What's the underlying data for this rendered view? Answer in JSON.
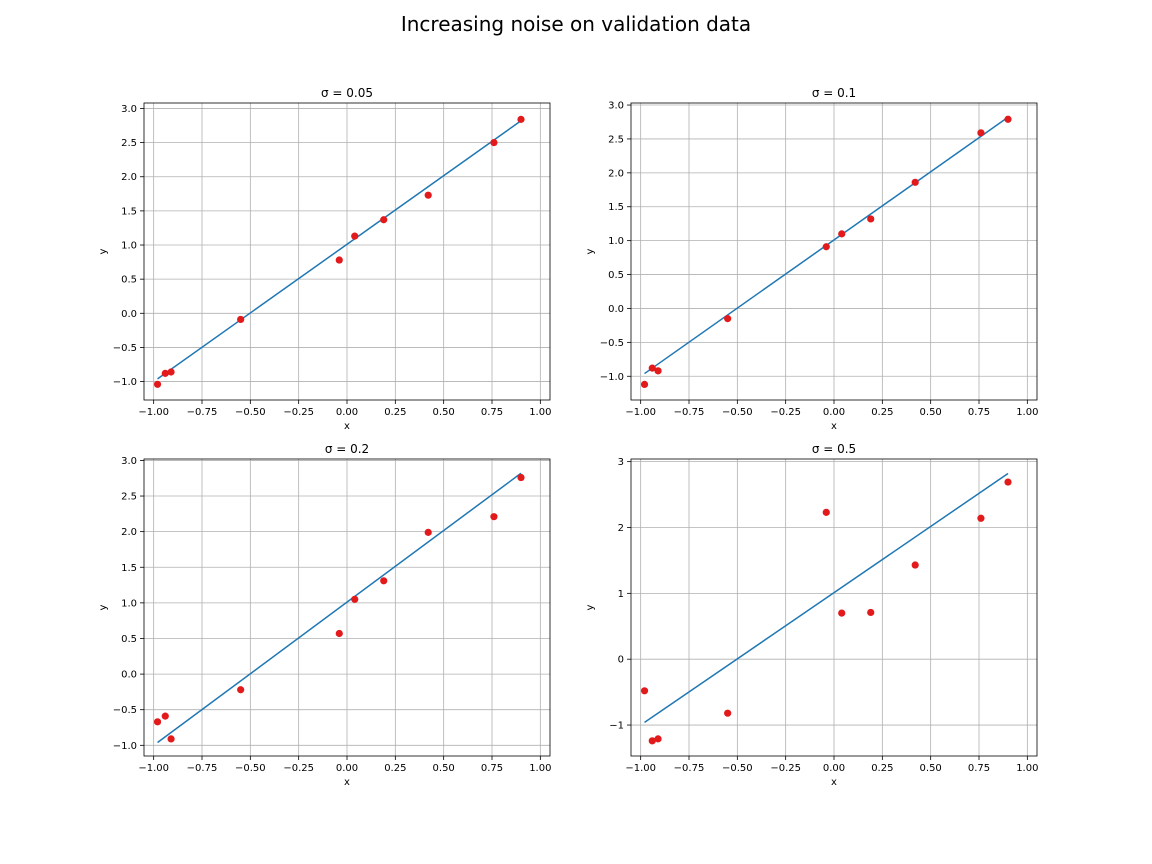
{
  "figure": {
    "suptitle": "Increasing noise on validation data"
  },
  "colors": {
    "line": "#1f77b4",
    "points": "#e31a1c",
    "grid": "#b0b0b0"
  },
  "chart_data": [
    {
      "type": "scatter",
      "title": "σ = 0.05",
      "xlabel": "x",
      "ylabel": "y",
      "xlim": [
        -1.05,
        1.05
      ],
      "ylim": [
        -1.27,
        3.08
      ],
      "xticks": [
        -1.0,
        -0.75,
        -0.5,
        -0.25,
        0.0,
        0.25,
        0.5,
        0.75,
        1.0
      ],
      "xtick_labels": [
        "−1.00",
        "−0.75",
        "−0.50",
        "−0.25",
        "0.00",
        "0.25",
        "0.50",
        "0.75",
        "1.00"
      ],
      "yticks": [
        -1.0,
        -0.5,
        0.0,
        0.5,
        1.0,
        1.5,
        2.0,
        2.5,
        3.0
      ],
      "ytick_labels": [
        "−1.0",
        "−0.5",
        "0.0",
        "0.5",
        "1.0",
        "1.5",
        "2.0",
        "2.5",
        "3.0"
      ],
      "grid": true,
      "line": {
        "x": [
          -0.98,
          0.9
        ],
        "y": [
          -0.96,
          2.82
        ]
      },
      "points": {
        "x": [
          -0.98,
          -0.94,
          -0.91,
          -0.55,
          -0.04,
          0.04,
          0.19,
          0.42,
          0.76,
          0.9
        ],
        "y": [
          -1.04,
          -0.88,
          -0.86,
          -0.09,
          0.78,
          1.13,
          1.37,
          1.73,
          2.5,
          2.84
        ]
      }
    },
    {
      "type": "scatter",
      "title": "σ = 0.1",
      "xlabel": "x",
      "ylabel": "y",
      "xlim": [
        -1.05,
        1.05
      ],
      "ylim": [
        -1.35,
        3.03
      ],
      "xticks": [
        -1.0,
        -0.75,
        -0.5,
        -0.25,
        0.0,
        0.25,
        0.5,
        0.75,
        1.0
      ],
      "xtick_labels": [
        "−1.00",
        "−0.75",
        "−0.50",
        "−0.25",
        "0.00",
        "0.25",
        "0.50",
        "0.75",
        "1.00"
      ],
      "yticks": [
        -1.0,
        -0.5,
        0.0,
        0.5,
        1.0,
        1.5,
        2.0,
        2.5,
        3.0
      ],
      "ytick_labels": [
        "−1.0",
        "−0.5",
        "0.0",
        "0.5",
        "1.0",
        "1.5",
        "2.0",
        "2.5",
        "3.0"
      ],
      "grid": true,
      "line": {
        "x": [
          -0.98,
          0.9
        ],
        "y": [
          -0.96,
          2.82
        ]
      },
      "points": {
        "x": [
          -0.98,
          -0.94,
          -0.91,
          -0.55,
          -0.04,
          0.04,
          0.19,
          0.42,
          0.76,
          0.9
        ],
        "y": [
          -1.12,
          -0.88,
          -0.92,
          -0.15,
          0.91,
          1.1,
          1.32,
          1.86,
          2.59,
          2.79
        ]
      }
    },
    {
      "type": "scatter",
      "title": "σ = 0.2",
      "xlabel": "x",
      "ylabel": "y",
      "xlim": [
        -1.05,
        1.05
      ],
      "ylim": [
        -1.15,
        3.02
      ],
      "xticks": [
        -1.0,
        -0.75,
        -0.5,
        -0.25,
        0.0,
        0.25,
        0.5,
        0.75,
        1.0
      ],
      "xtick_labels": [
        "−1.00",
        "−0.75",
        "−0.50",
        "−0.25",
        "0.00",
        "0.25",
        "0.50",
        "0.75",
        "1.00"
      ],
      "yticks": [
        -1.0,
        -0.5,
        0.0,
        0.5,
        1.0,
        1.5,
        2.0,
        2.5,
        3.0
      ],
      "ytick_labels": [
        "−1.0",
        "−0.5",
        "0.0",
        "0.5",
        "1.0",
        "1.5",
        "2.0",
        "2.5",
        "3.0"
      ],
      "grid": true,
      "line": {
        "x": [
          -0.98,
          0.9
        ],
        "y": [
          -0.96,
          2.82
        ]
      },
      "points": {
        "x": [
          -0.98,
          -0.94,
          -0.91,
          -0.55,
          -0.04,
          0.04,
          0.19,
          0.42,
          0.76,
          0.9
        ],
        "y": [
          -0.67,
          -0.59,
          -0.91,
          -0.22,
          0.57,
          1.05,
          1.31,
          1.99,
          2.21,
          2.76
        ]
      }
    },
    {
      "type": "scatter",
      "title": "σ = 0.5",
      "xlabel": "x",
      "ylabel": "y",
      "xlim": [
        -1.05,
        1.05
      ],
      "ylim": [
        -1.47,
        3.04
      ],
      "xticks": [
        -1.0,
        -0.75,
        -0.5,
        -0.25,
        0.0,
        0.25,
        0.5,
        0.75,
        1.0
      ],
      "xtick_labels": [
        "−1.00",
        "−0.75",
        "−0.50",
        "−0.25",
        "0.00",
        "0.25",
        "0.50",
        "0.75",
        "1.00"
      ],
      "yticks": [
        -1,
        0,
        1,
        2,
        3
      ],
      "ytick_labels": [
        "−1",
        "0",
        "1",
        "2",
        "3"
      ],
      "grid": true,
      "line": {
        "x": [
          -0.98,
          0.9
        ],
        "y": [
          -0.96,
          2.82
        ]
      },
      "points": {
        "x": [
          -0.98,
          -0.94,
          -0.91,
          -0.55,
          -0.04,
          0.04,
          0.19,
          0.42,
          0.76,
          0.9
        ],
        "y": [
          -0.48,
          -1.24,
          -1.21,
          -0.82,
          2.23,
          0.7,
          0.71,
          1.43,
          2.14,
          2.69
        ]
      }
    }
  ]
}
